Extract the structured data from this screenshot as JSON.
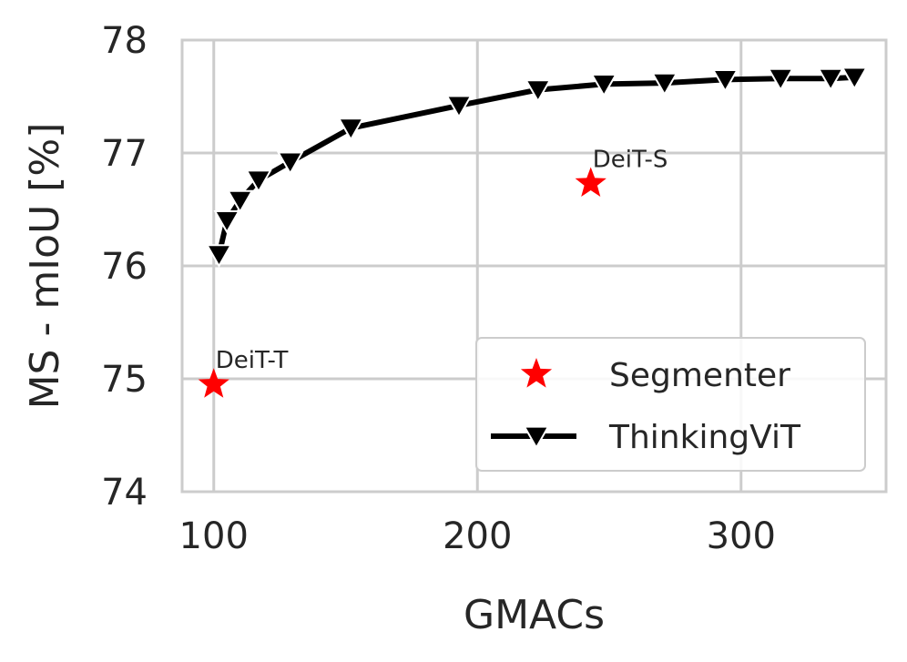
{
  "chart_data": {
    "type": "line",
    "title": "",
    "xlabel": "GMACs",
    "ylabel": "MS - mIoU [%]",
    "xlim": [
      88,
      355
    ],
    "ylim": [
      74,
      78
    ],
    "xticks": [
      100,
      200,
      300
    ],
    "yticks": [
      74,
      75,
      76,
      77,
      78
    ],
    "grid": true,
    "legend_position": "bottom-right",
    "series": [
      {
        "name": "Segmenter",
        "kind": "scatter",
        "marker": "star",
        "color": "#ff0000",
        "points": [
          {
            "x": 100,
            "y": 74.95,
            "label": "DeiT-T"
          },
          {
            "x": 243,
            "y": 76.73,
            "label": "DeiT-S"
          }
        ]
      },
      {
        "name": "ThinkingViT",
        "kind": "line",
        "marker": "triangle-down",
        "color": "#000000",
        "points": [
          {
            "x": 102,
            "y": 76.1
          },
          {
            "x": 105,
            "y": 76.4
          },
          {
            "x": 110,
            "y": 76.58
          },
          {
            "x": 117,
            "y": 76.76
          },
          {
            "x": 129,
            "y": 76.92
          },
          {
            "x": 152,
            "y": 77.22
          },
          {
            "x": 193,
            "y": 77.42
          },
          {
            "x": 223,
            "y": 77.56
          },
          {
            "x": 248,
            "y": 77.61
          },
          {
            "x": 271,
            "y": 77.62
          },
          {
            "x": 294,
            "y": 77.65
          },
          {
            "x": 315,
            "y": 77.66
          },
          {
            "x": 334,
            "y": 77.66
          },
          {
            "x": 343,
            "y": 77.67
          }
        ]
      }
    ]
  }
}
